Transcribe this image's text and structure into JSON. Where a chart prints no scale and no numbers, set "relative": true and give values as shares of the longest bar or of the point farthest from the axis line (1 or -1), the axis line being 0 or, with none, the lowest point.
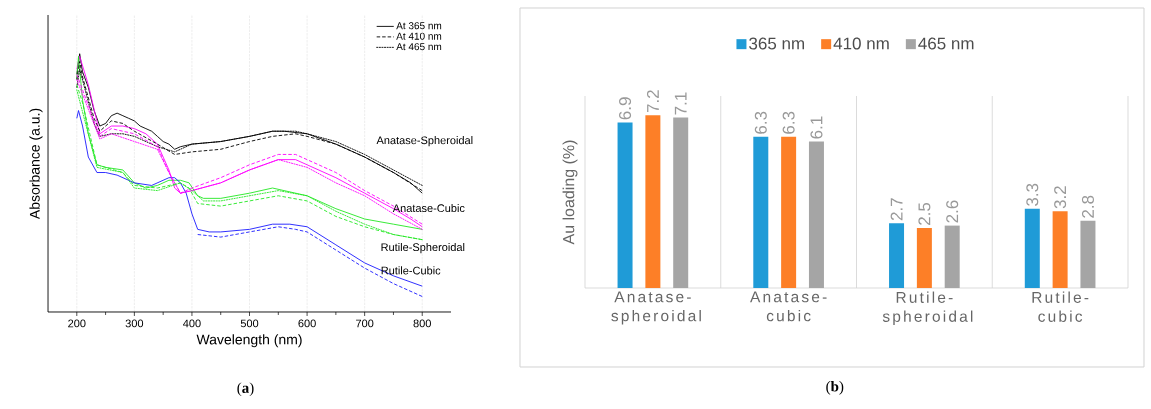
{
  "chart_data": [
    {
      "type": "line",
      "relative": true,
      "xlabel": "Wavelength (nm)",
      "ylabel": "Absorbance (a.u.)",
      "xlim": [
        150,
        850
      ],
      "xticks": [
        200,
        300,
        400,
        500,
        600,
        700,
        800
      ],
      "grid": "x",
      "legend": "top right",
      "annotations": [
        "Anatase-Spheroidal",
        "Anatase-Cubic",
        "Rutile-Spheroidal",
        "Rutile-Cubic",
        "(**a**)"
      ],
      "series": [
        {
          "name": "At 365 nm",
          "color": "#000000",
          "line_style": "solid",
          "x": [
            200,
            205,
            210,
            220,
            230,
            240,
            250,
            260,
            270,
            280,
            290,
            300,
            310,
            320,
            330,
            340,
            350,
            360,
            370,
            380,
            400,
            450,
            500,
            540,
            560,
            600,
            650,
            700,
            750,
            780,
            800
          ],
          "values": [
            0.92,
            1.0,
            0.93,
            0.87,
            0.78,
            0.72,
            0.73,
            0.76,
            0.77,
            0.76,
            0.75,
            0.74,
            0.72,
            0.71,
            0.7,
            0.68,
            0.66,
            0.65,
            0.63,
            0.64,
            0.65,
            0.66,
            0.68,
            0.7,
            0.7,
            0.69,
            0.65,
            0.6,
            0.54,
            0.5,
            0.46
          ]
        },
        {
          "name": "At 410 nm",
          "color": "#000000",
          "line_style": "dashed",
          "x": [
            200,
            205,
            210,
            230,
            240,
            260,
            280,
            300,
            340,
            370,
            400,
            450,
            500,
            540,
            580,
            600,
            650,
            700,
            750,
            800
          ],
          "values": [
            0.9,
            0.97,
            0.91,
            0.75,
            0.7,
            0.74,
            0.73,
            0.7,
            0.65,
            0.61,
            0.62,
            0.63,
            0.66,
            0.68,
            0.69,
            0.68,
            0.65,
            0.6,
            0.54,
            0.47
          ]
        },
        {
          "name": "At 465 nm",
          "color": "#000000",
          "line_style": "dotted",
          "x": [
            200,
            205,
            230,
            240,
            260,
            280,
            300,
            340,
            370,
            400,
            450,
            500,
            540,
            580,
            600,
            650,
            700,
            750,
            800
          ],
          "values": [
            0.87,
            0.94,
            0.73,
            0.68,
            0.69,
            0.69,
            0.68,
            0.64,
            0.62,
            0.65,
            0.66,
            0.68,
            0.7,
            0.7,
            0.69,
            0.66,
            0.61,
            0.55,
            0.49
          ]
        },
        {
          "color": "#ff00ff",
          "line_style": "solid",
          "x": [
            200,
            205,
            220,
            240,
            260,
            280,
            300,
            320,
            340,
            350,
            360,
            370,
            380,
            400,
            450,
            500,
            550,
            580,
            600,
            650,
            700,
            750,
            780,
            800
          ],
          "values": [
            0.94,
            0.99,
            0.88,
            0.69,
            0.72,
            0.72,
            0.71,
            0.69,
            0.65,
            0.6,
            0.55,
            0.48,
            0.46,
            0.47,
            0.5,
            0.55,
            0.59,
            0.59,
            0.57,
            0.52,
            0.46,
            0.4,
            0.36,
            0.33
          ]
        },
        {
          "color": "#ff00ff",
          "line_style": "dashed",
          "x": [
            200,
            240,
            260,
            300,
            340,
            360,
            380,
            400,
            450,
            500,
            550,
            580,
            600,
            650,
            700,
            750,
            800
          ],
          "values": [
            0.92,
            0.68,
            0.71,
            0.69,
            0.64,
            0.54,
            0.46,
            0.48,
            0.52,
            0.57,
            0.61,
            0.61,
            0.59,
            0.54,
            0.47,
            0.41,
            0.34
          ]
        },
        {
          "color": "#ff00ff",
          "line_style": "dotted",
          "x": [
            200,
            240,
            260,
            300,
            340,
            360,
            380,
            400,
            450,
            500,
            550,
            600,
            650,
            700,
            750,
            800
          ],
          "values": [
            0.9,
            0.67,
            0.69,
            0.66,
            0.63,
            0.54,
            0.46,
            0.47,
            0.5,
            0.55,
            0.59,
            0.56,
            0.5,
            0.45,
            0.38,
            0.32
          ]
        },
        {
          "color": "#22e822",
          "line_style": "solid",
          "x": [
            200,
            203,
            210,
            220,
            235,
            250,
            280,
            300,
            320,
            340,
            360,
            380,
            395,
            410,
            420,
            450,
            500,
            540,
            560,
            600,
            650,
            700,
            750,
            800
          ],
          "values": [
            0.9,
            0.99,
            0.82,
            0.69,
            0.57,
            0.56,
            0.55,
            0.5,
            0.48,
            0.49,
            0.51,
            0.51,
            0.5,
            0.45,
            0.44,
            0.44,
            0.46,
            0.48,
            0.47,
            0.45,
            0.4,
            0.36,
            0.34,
            0.32
          ]
        },
        {
          "color": "#22e822",
          "line_style": "dashed",
          "x": [
            200,
            210,
            235,
            280,
            300,
            340,
            380,
            395,
            410,
            450,
            500,
            550,
            600,
            650,
            700,
            750,
            800
          ],
          "values": [
            0.88,
            0.81,
            0.57,
            0.54,
            0.49,
            0.48,
            0.5,
            0.48,
            0.42,
            0.41,
            0.43,
            0.45,
            0.43,
            0.37,
            0.33,
            0.3,
            0.28
          ]
        },
        {
          "color": "#22e822",
          "line_style": "dotted",
          "x": [
            200,
            235,
            280,
            300,
            340,
            380,
            400,
            420,
            450,
            500,
            550,
            600,
            650,
            700,
            750,
            800
          ],
          "values": [
            0.86,
            0.56,
            0.54,
            0.48,
            0.47,
            0.5,
            0.47,
            0.43,
            0.43,
            0.45,
            0.47,
            0.45,
            0.39,
            0.34,
            0.3,
            0.28
          ]
        },
        {
          "color": "#1a1aff",
          "line_style": "solid",
          "x": [
            200,
            203,
            210,
            220,
            235,
            250,
            270,
            300,
            330,
            360,
            370,
            380,
            390,
            400,
            410,
            430,
            450,
            500,
            540,
            570,
            600,
            650,
            700,
            750,
            800
          ],
          "values": [
            0.75,
            0.78,
            0.72,
            0.6,
            0.54,
            0.54,
            0.53,
            0.5,
            0.49,
            0.52,
            0.52,
            0.5,
            0.46,
            0.38,
            0.32,
            0.31,
            0.31,
            0.32,
            0.34,
            0.34,
            0.33,
            0.26,
            0.19,
            0.14,
            0.1
          ]
        },
        {
          "color": "#1a1aff",
          "line_style": "dashed",
          "x": [
            410,
            450,
            500,
            550,
            580,
            600,
            650,
            700,
            750,
            800
          ],
          "values": [
            0.3,
            0.29,
            0.31,
            0.33,
            0.32,
            0.31,
            0.24,
            0.17,
            0.11,
            0.06
          ]
        }
      ]
    },
    {
      "type": "bar",
      "categories": [
        "Anatase-spheroidal",
        "Anatase-cubic",
        "Rutile-spheroidal",
        "Rutile-cubic"
      ],
      "ylabel": "Au loading (%)",
      "ylim": [
        0,
        8
      ],
      "tick_labels": "x",
      "grid": "x",
      "legend": "top",
      "data_labels": true,
      "annotations": [
        "(**b**)"
      ],
      "series": [
        {
          "name": "365 nm",
          "color": "#1f9bd7",
          "values": [
            6.9,
            6.3,
            2.7,
            3.3
          ]
        },
        {
          "name": "410 nm",
          "color": "#fd7f27",
          "values": [
            7.2,
            6.3,
            2.5,
            3.2
          ]
        },
        {
          "name": "465 nm",
          "color": "#a5a5a5",
          "values": [
            7.1,
            6.1,
            2.6,
            2.8
          ]
        }
      ]
    }
  ]
}
